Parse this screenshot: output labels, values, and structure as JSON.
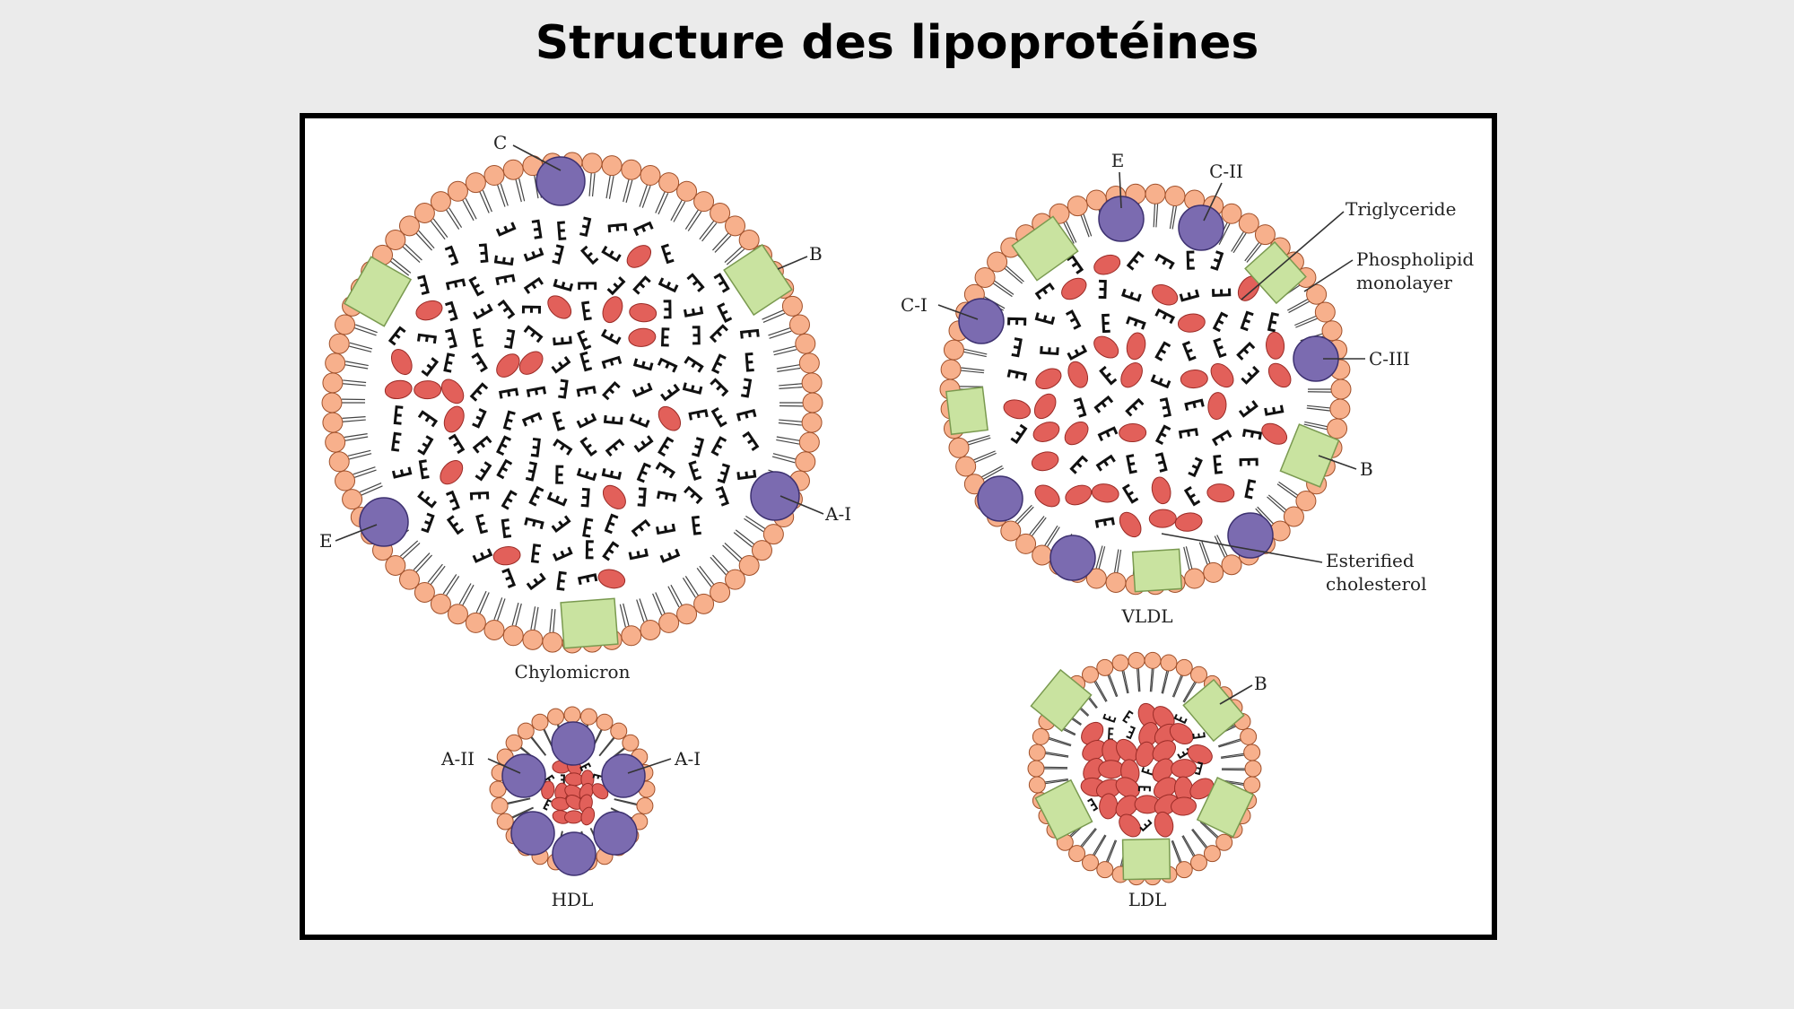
{
  "title": "Structure des lipoprotéines",
  "colors": {
    "phospholipid_head": "#f7b08c",
    "apoprotein_purple": "#7b6bb0",
    "apoprotein_green": "#c9e3a0",
    "lipid_red": "#e2605a",
    "frame": "#000000",
    "background": "#ebebeb"
  },
  "diagram": {
    "chylomicron": {
      "name": "Chylomicron",
      "labels": {
        "c": "C",
        "b": "B",
        "a1": "A-I",
        "e": "E"
      }
    },
    "vldl": {
      "name": "VLDL",
      "labels": {
        "e": "E",
        "c2": "C-II",
        "triglyceride": "Triglyceride",
        "phospholipid_1": "Phospholipid",
        "phospholipid_2": "monolayer",
        "c1": "C-I",
        "c3": "C-III",
        "b": "B",
        "chol_1": "Esterified",
        "chol_2": "cholesterol"
      }
    },
    "hdl": {
      "name": "HDL",
      "labels": {
        "a2": "A-II",
        "a1": "A-I"
      }
    },
    "ldl": {
      "name": "LDL",
      "labels": {
        "b": "B"
      }
    }
  }
}
